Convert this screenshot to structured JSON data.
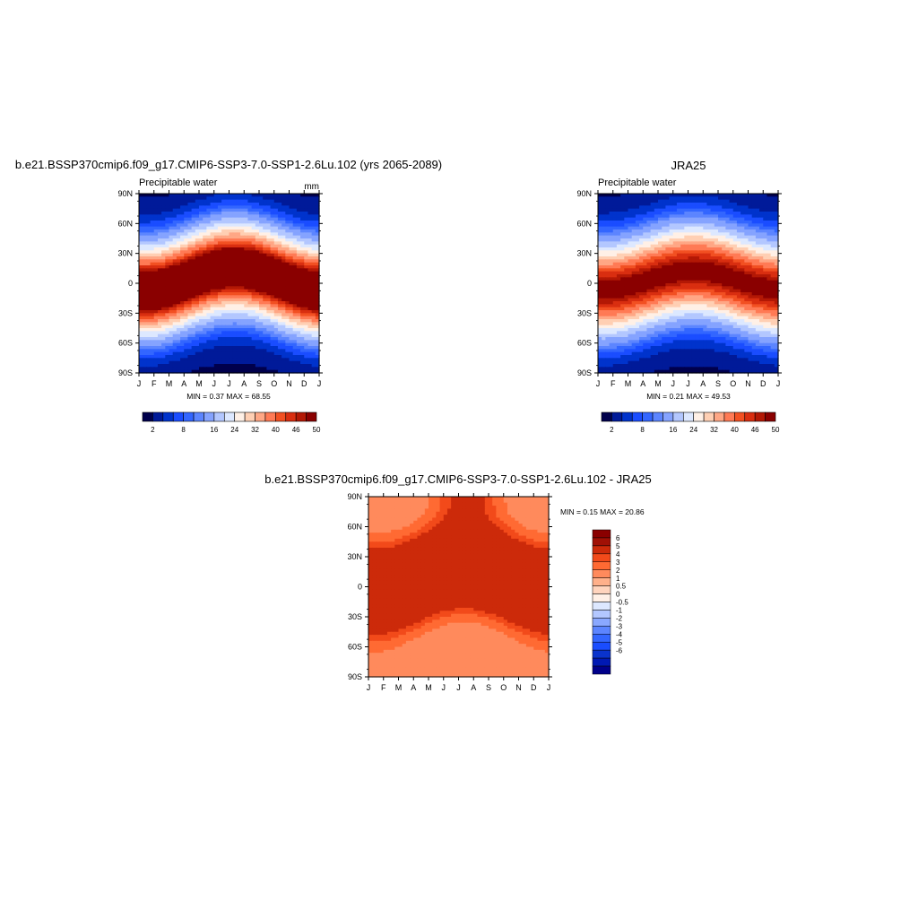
{
  "colors": {
    "levels_colors": [
      "#00004c",
      "#001a99",
      "#0033cc",
      "#1a4dff",
      "#3366ff",
      "#5c85ff",
      "#85a3ff",
      "#b3c7ff",
      "#dde8ff",
      "#fff0e6",
      "#ffcfb3",
      "#ffa785",
      "#ff7a55",
      "#f25022",
      "#d92e10",
      "#b31805",
      "#8a0000"
    ],
    "diff_colors": [
      "#00008a",
      "#0019b3",
      "#0a33cc",
      "#1a4dff",
      "#3366ff",
      "#5c85ff",
      "#8aa8ff",
      "#b3c7ff",
      "#dde8ff",
      "#fff0e6",
      "#ffd4bd",
      "#ffb08a",
      "#ff8a5c",
      "#ff6a33",
      "#f24a1a",
      "#cc2a0a",
      "#a01005",
      "#8a0000"
    ]
  },
  "top_left": {
    "title": "b.e21.BSSP370cmip6.f09_g17.CMIP6-SSP3-7.0-SSP1-2.6Lu.102 (yrs 2065-2089)",
    "left_label": "Precipitable water",
    "units": "mm",
    "min_max": "MIN =   0.37 MAX =  68.55"
  },
  "top_right": {
    "title": "JRA25",
    "left_label": "Precipitable water",
    "min_max": "MIN =   0.21 MAX =  49.53"
  },
  "bottom": {
    "title": "b.e21.BSSP370cmip6.f09_g17.CMIP6-SSP3-7.0-SSP1-2.6Lu.102 - JRA25",
    "min_max": "MIN =   0.15 MAX =  20.86"
  },
  "axes": {
    "months": [
      "J",
      "F",
      "M",
      "A",
      "M",
      "J",
      "J",
      "A",
      "S",
      "O",
      "N",
      "D",
      "J"
    ],
    "lats": [
      "90N",
      "60N",
      "30N",
      "0",
      "30S",
      "60S",
      "90S"
    ]
  },
  "chart_data": [
    {
      "type": "heatmap",
      "title": "b.e21.BSSP370cmip6.f09_g17.CMIP6-SSP3-7.0-SSP1-2.6Lu.102 (yrs 2065-2089)",
      "subtitle": "Precipitable water",
      "units": "mm",
      "x_ticks": [
        "J",
        "F",
        "M",
        "A",
        "M",
        "J",
        "J",
        "A",
        "S",
        "O",
        "N",
        "D",
        "J"
      ],
      "y_ticks": [
        "90N",
        "60N",
        "30N",
        "0",
        "30S",
        "60S",
        "90S"
      ],
      "ylim": [
        -90,
        90
      ],
      "colorbar_labels": [
        "2",
        "8",
        "16",
        "24",
        "32",
        "40",
        "46",
        "50"
      ],
      "colorbar_levels": [
        2,
        4,
        6,
        8,
        10,
        12,
        16,
        20,
        24,
        28,
        32,
        36,
        40,
        43,
        46,
        48,
        50
      ],
      "min": 0.37,
      "max": 68.55,
      "field": {
        "band_center_0": 4,
        "band_center_amp": 12,
        "band_peak": 56,
        "band_width": 30
      }
    },
    {
      "type": "heatmap",
      "title": "JRA25",
      "subtitle": "Precipitable water",
      "x_ticks": [
        "J",
        "F",
        "M",
        "A",
        "M",
        "J",
        "J",
        "A",
        "S",
        "O",
        "N",
        "D",
        "J"
      ],
      "y_ticks": [
        "90N",
        "60N",
        "30N",
        "0",
        "30S",
        "60S",
        "90S"
      ],
      "ylim": [
        -90,
        90
      ],
      "colorbar_labels": [
        "2",
        "8",
        "16",
        "24",
        "32",
        "40",
        "46",
        "50"
      ],
      "colorbar_levels": [
        2,
        4,
        6,
        8,
        10,
        12,
        16,
        20,
        24,
        28,
        32,
        36,
        40,
        43,
        46,
        48,
        50
      ],
      "min": 0.21,
      "max": 49.53,
      "field": {
        "band_center_0": 3,
        "band_center_amp": 10,
        "band_peak": 47,
        "band_width": 31
      }
    },
    {
      "type": "heatmap",
      "title": "b.e21.BSSP370cmip6.f09_g17.CMIP6-SSP3-7.0-SSP1-2.6Lu.102 - JRA25",
      "x_ticks": [
        "J",
        "F",
        "M",
        "A",
        "M",
        "J",
        "J",
        "A",
        "S",
        "O",
        "N",
        "D",
        "J"
      ],
      "y_ticks": [
        "90N",
        "60N",
        "30N",
        "0",
        "30S",
        "60S",
        "90S"
      ],
      "ylim": [
        -90,
        90
      ],
      "colorbar_labels": [
        "6",
        "5",
        "4",
        "3",
        "2",
        "1",
        "0.5",
        "0",
        "-0.5",
        "-1",
        "-2",
        "-3",
        "-4",
        "-5",
        "-6"
      ],
      "colorbar_levels": [
        -6,
        -5,
        -4,
        -3,
        -2,
        -1,
        -0.5,
        0,
        0.5,
        1,
        2,
        3,
        4,
        5,
        6
      ],
      "min": 0.15,
      "max": 20.86
    }
  ]
}
